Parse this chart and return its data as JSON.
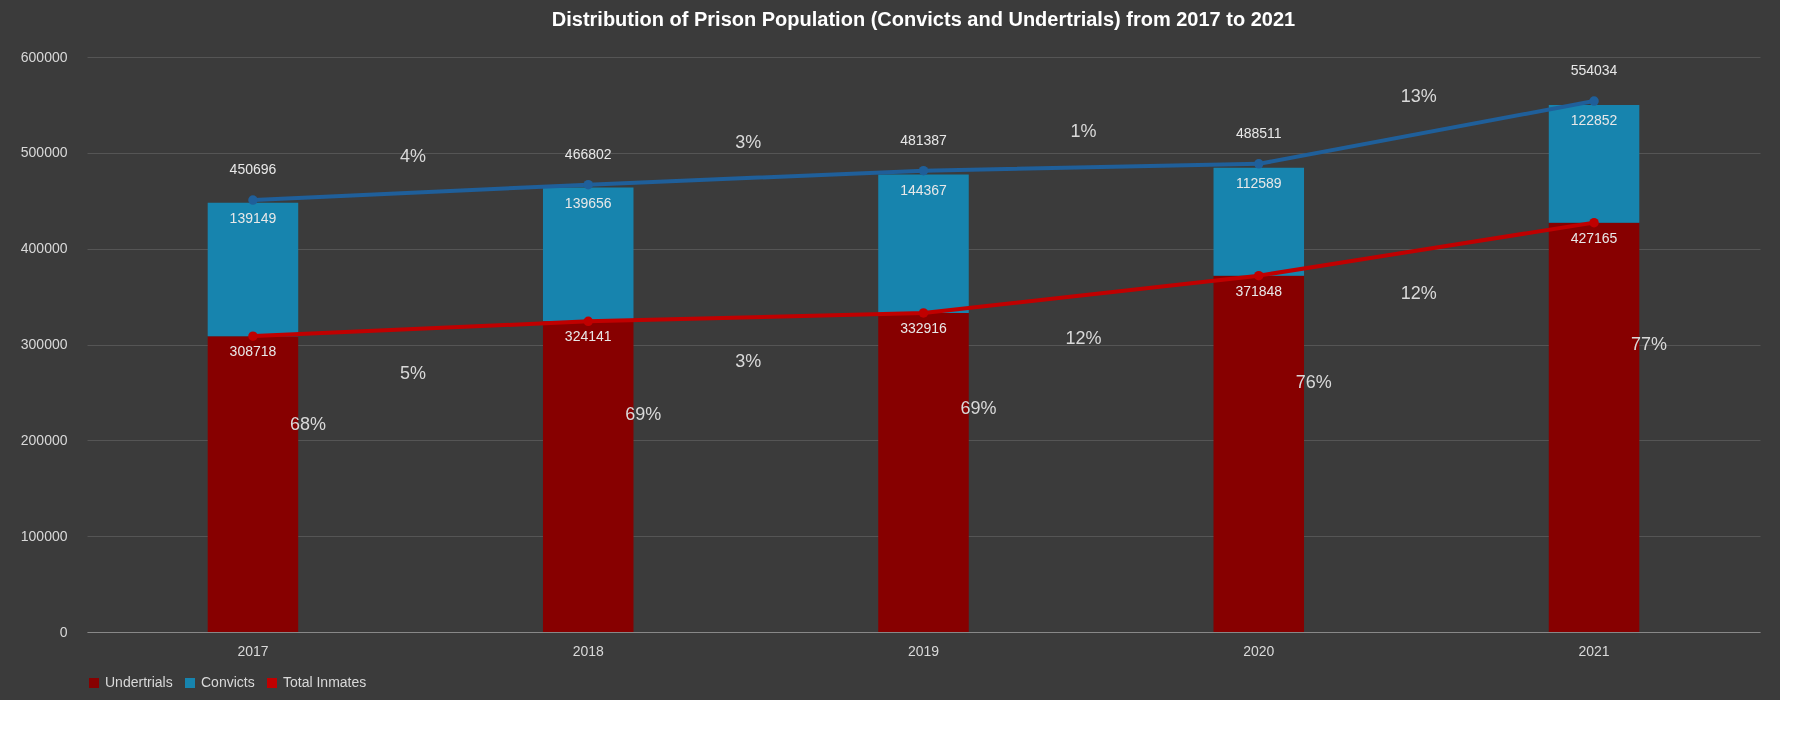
{
  "chart_data": {
    "type": "bar",
    "title": "Distribution of Prison Population (Convicts and Undertrials) from 2017 to 2021",
    "categories": [
      "2017",
      "2018",
      "2019",
      "2020",
      "2021"
    ],
    "stacked": true,
    "series": [
      {
        "name": "Undertrials",
        "color": "#870000",
        "values": [
          308718,
          324141,
          332916,
          371848,
          427165
        ],
        "data_labels": true
      },
      {
        "name": "Convicts",
        "color": "#1784ae",
        "values": [
          139149,
          139656,
          144367,
          112589,
          122852
        ],
        "data_labels": true
      },
      {
        "type": "line",
        "color": "#1f5f9a",
        "values": [
          450696,
          466802,
          481387,
          488511,
          554034
        ],
        "data_labels": true,
        "marker": "circle"
      },
      {
        "name": "Total Inmates",
        "type": "line",
        "color": "#c00000",
        "values": [
          308718,
          324141,
          332916,
          371848,
          427165
        ],
        "marker": "circle"
      }
    ],
    "ylim": [
      0,
      600000
    ],
    "yticks": [
      0,
      100000,
      200000,
      300000,
      400000,
      500000,
      600000
    ],
    "grid": "y",
    "legend": "bottom",
    "annotations": [
      "68%",
      "69%",
      "69%",
      "76%",
      "77%",
      "4%",
      "5%",
      "3%",
      "3%",
      "1%",
      "12%",
      "13%",
      "12%"
    ]
  }
}
